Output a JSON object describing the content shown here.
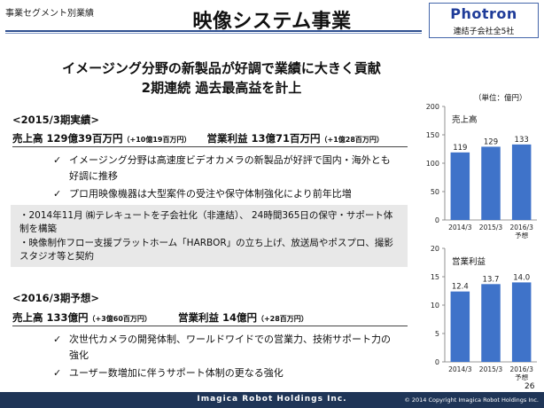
{
  "header": {
    "section_label": "事業セグメント別業績",
    "title": "映像システム事業",
    "logo": {
      "name": "Photron",
      "sub": "連結子会社全5社"
    }
  },
  "headline": {
    "line1": "イメージング分野の新製品が好調で業績に大きく貢献",
    "line2": "2期連続 過去最高益を計上"
  },
  "results_2015": {
    "heading": "<2015/3期実績>",
    "sales_label": "売上高 129億39百万円",
    "sales_change": "（+10億19百万円）",
    "profit_label": "営業利益 13億71百万円",
    "profit_change": "（+1億28百万円）",
    "bullets": [
      "イメージング分野は高速度ビデオカメラの新製品が好評で国内・海外とも好調に推移",
      "プロ用映像機器は大型案件の受注や保守体制強化により前年比増"
    ],
    "check_mark": "✓"
  },
  "box": {
    "items": [
      "・2014年11月 ㈱テレキュートを子会社化（非連結）、 24時間365日の保守・サポート体制を構築",
      "・映像制作フロー支援プラットホーム「HARBOR」の立ち上げ、放送局やポスプロ、撮影スタジオ等と契約"
    ]
  },
  "forecast_2016": {
    "heading": "<2016/3期予想>",
    "sales_label": "売上高 133億円",
    "sales_change": "（+3億60百万円）",
    "profit_label": "営業利益 14億円",
    "profit_change": "（+28百万円）",
    "bullets": [
      "次世代カメラの開発体制、ワールドワイドでの営業力、技術サポート力の強化",
      "ユーザー数増加に伴うサポート体制の更なる強化"
    ],
    "check_mark": "✓"
  },
  "unit_label": "（単位：億円）",
  "chart_data": [
    {
      "type": "bar",
      "title": "売上高",
      "categories": [
        "2014/3",
        "2015/3",
        "2016/3 予想"
      ],
      "values": [
        119,
        129,
        133
      ],
      "value_labels": [
        "119",
        "129",
        "133"
      ],
      "ylim": [
        0,
        200
      ],
      "yticks": [
        0,
        50,
        100,
        150,
        200
      ],
      "bar_color": "#3f73c9",
      "grid": false
    },
    {
      "type": "bar",
      "title": "営業利益",
      "categories": [
        "2014/3",
        "2015/3",
        "2016/3 予想"
      ],
      "values": [
        12.4,
        13.7,
        14.0
      ],
      "value_labels": [
        "12.4",
        "13.7",
        "14.0"
      ],
      "ylim": [
        0,
        20
      ],
      "yticks": [
        0,
        5,
        10,
        15,
        20
      ],
      "bar_color": "#3f73c9",
      "grid": false
    }
  ],
  "footer": {
    "brand": "Imagica Robot Holdings Inc.",
    "copyright": "© 2014 Copyright Imagica Robot Holdings Inc.",
    "page_number": "26"
  }
}
